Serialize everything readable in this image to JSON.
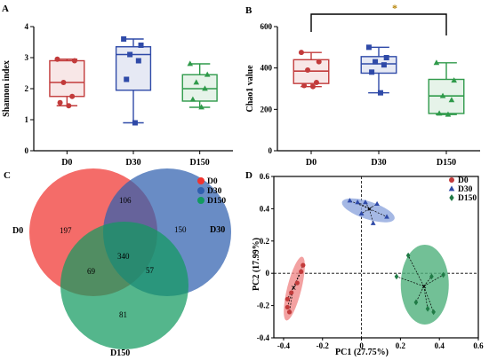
{
  "chart_data": [
    {
      "panel": "A",
      "type": "box",
      "ylabel": "Shannon index",
      "ylim": [
        0,
        4
      ],
      "yticks": [
        0,
        1,
        2,
        3,
        4
      ],
      "categories": [
        "D0",
        "D30",
        "D150"
      ],
      "colors": [
        "#c23b3b",
        "#2f4aa8",
        "#2f9a4a"
      ],
      "boxes": [
        {
          "min": 1.45,
          "q1": 1.75,
          "median": 2.2,
          "q3": 2.9,
          "max": 2.95
        },
        {
          "min": 0.9,
          "q1": 1.95,
          "median": 3.1,
          "q3": 3.35,
          "max": 3.6
        },
        {
          "min": 1.4,
          "q1": 1.6,
          "median": 2.0,
          "q3": 2.45,
          "max": 2.8
        }
      ],
      "points": [
        [
          2.95,
          2.9,
          2.2,
          1.75,
          1.55,
          1.45
        ],
        [
          3.6,
          3.4,
          3.1,
          2.9,
          2.3,
          0.9
        ],
        [
          2.8,
          2.45,
          2.2,
          2.0,
          1.65,
          1.4
        ]
      ]
    },
    {
      "panel": "B",
      "type": "box",
      "ylabel": "Chao1 value",
      "ylim": [
        0,
        600
      ],
      "yticks": [
        0,
        200,
        400,
        600
      ],
      "categories": [
        "D0",
        "D30",
        "D150"
      ],
      "colors": [
        "#c23b3b",
        "#2f4aa8",
        "#2f9a4a"
      ],
      "significance": {
        "between": [
          "D0",
          "D150"
        ],
        "label": "*"
      },
      "boxes": [
        {
          "min": 310,
          "q1": 325,
          "median": 385,
          "q3": 440,
          "max": 475
        },
        {
          "min": 280,
          "q1": 375,
          "median": 420,
          "q3": 455,
          "max": 500
        },
        {
          "min": 175,
          "q1": 180,
          "median": 265,
          "q3": 345,
          "max": 425
        }
      ],
      "points": [
        [
          475,
          430,
          390,
          330,
          315,
          310
        ],
        [
          500,
          450,
          430,
          415,
          380,
          280
        ],
        [
          425,
          340,
          265,
          245,
          180,
          175
        ]
      ]
    },
    {
      "panel": "C",
      "type": "venn",
      "sets": [
        "D0",
        "D30",
        "D150"
      ],
      "colors": [
        "#f0332f",
        "#2f5fae",
        "#129a5f"
      ],
      "regions": {
        "D0_only": "197",
        "D30_only": "150",
        "D150_only": "81",
        "D0_D30": "106",
        "D0_D150": "69",
        "D30_D150": "57",
        "all": "340"
      }
    },
    {
      "panel": "D",
      "type": "scatter",
      "xlabel": "PC1 (27.75%)",
      "ylabel": "PC2 (17.99%)",
      "xlim": [
        -0.45,
        0.6
      ],
      "ylim": [
        -0.4,
        0.6
      ],
      "xticks": [
        -0.4,
        -0.2,
        0,
        0.2,
        0.4,
        0.6
      ],
      "xtick_labels": [
        "-0.4",
        "-0.2",
        "0",
        "0.2",
        "0.4",
        "0.6"
      ],
      "yticks": [
        -0.4,
        -0.2,
        0,
        0.2,
        0.4,
        0.6
      ],
      "ytick_labels": [
        "-0.4",
        "-0.2",
        "0",
        "0.2",
        "0.4",
        "0.6"
      ],
      "series": [
        {
          "name": "D0",
          "color": "#c23b3b",
          "ellipse_color": "#f08a8a",
          "marker": "circle",
          "centroid": [
            -0.35,
            -0.09
          ],
          "points": [
            [
              -0.3,
              0.05
            ],
            [
              -0.31,
              0.01
            ],
            [
              -0.33,
              -0.06
            ],
            [
              -0.36,
              -0.12
            ],
            [
              -0.38,
              -0.16
            ],
            [
              -0.38,
              -0.21
            ],
            [
              -0.37,
              -0.24
            ]
          ]
        },
        {
          "name": "D30",
          "color": "#2f4aa8",
          "ellipse_color": "#8fa6dd",
          "marker": "triangle",
          "centroid": [
            0.04,
            0.4
          ],
          "points": [
            [
              -0.06,
              0.45
            ],
            [
              -0.02,
              0.44
            ],
            [
              0.02,
              0.44
            ],
            [
              0.08,
              0.43
            ],
            [
              0.13,
              0.35
            ],
            [
              0.0,
              0.37
            ],
            [
              0.06,
              0.31
            ]
          ]
        },
        {
          "name": "D150",
          "color": "#1f7a45",
          "ellipse_color": "#4fb07c",
          "marker": "diamond",
          "centroid": [
            0.32,
            -0.08
          ],
          "points": [
            [
              0.24,
              0.11
            ],
            [
              0.28,
              -0.18
            ],
            [
              0.18,
              -0.02
            ],
            [
              0.34,
              -0.22
            ],
            [
              0.37,
              -0.24
            ],
            [
              0.42,
              -0.01
            ],
            [
              0.36,
              -0.02
            ]
          ]
        }
      ]
    }
  ],
  "labels": {
    "panel_a": "A",
    "panel_b": "B",
    "panel_c": "C",
    "panel_d": "D",
    "star": "*"
  }
}
